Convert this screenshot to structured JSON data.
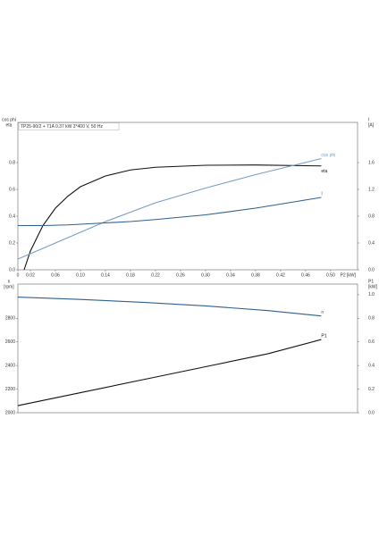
{
  "chart_data": [
    {
      "type": "line",
      "title": "TP25-90/2 + 71A   0.37 kW   3*400 V, 50 Hz",
      "y_label": [
        "cos phi",
        "eta"
      ],
      "y2_label": [
        "I",
        "[A]"
      ],
      "x_label": "P2 [kW]",
      "x": [
        0,
        0.01,
        0.02,
        0.04,
        0.06,
        0.08,
        0.1,
        0.14,
        0.18,
        0.22,
        0.3,
        0.38,
        0.485
      ],
      "xlim": [
        0,
        0.543
      ],
      "xticks": [
        {
          "value": 0,
          "label": "0"
        },
        0.02,
        0.06,
        {
          "value": 0.1,
          "label": "0.10"
        },
        0.14,
        0.18,
        0.22,
        0.26,
        {
          "value": 0.3,
          "label": "0.30"
        },
        0.34,
        0.38,
        0.42,
        0.46,
        {
          "value": 0.5,
          "label": "0.50"
        }
      ],
      "ylim": [
        0,
        1.1
      ],
      "yticks": [
        {
          "value": 0,
          "label": "0.0"
        },
        0.2,
        0.4,
        0.6,
        0.8
      ],
      "y2lim": [
        0,
        2.2
      ],
      "y2ticks": [
        {
          "value": 0,
          "label": "0.0"
        },
        0.4,
        0.8,
        1.2,
        1.6
      ],
      "series": [
        {
          "name": "eta",
          "color": "#111111",
          "values": [
            null,
            0,
            0.14,
            0.33,
            0.46,
            0.55,
            0.62,
            0.7,
            0.745,
            0.765,
            0.78,
            0.782,
            0.775
          ]
        },
        {
          "name": "cos phi",
          "color": "#7a9cc6",
          "values": [
            0.08,
            0.1,
            0.12,
            0.16,
            0.2,
            0.24,
            0.28,
            0.36,
            0.43,
            0.5,
            0.61,
            0.71,
            0.83
          ]
        },
        {
          "name": "I",
          "color": "#2f5f8f",
          "axis": "y2",
          "values": [
            0.66,
            0.66,
            0.66,
            0.66,
            0.665,
            0.67,
            0.68,
            0.7,
            0.72,
            0.75,
            0.82,
            0.92,
            1.08
          ]
        }
      ]
    },
    {
      "type": "line",
      "y_label": [
        "n",
        "[rpm]"
      ],
      "y2_label": [
        "P1",
        "[kW]"
      ],
      "x": [
        0,
        0.1,
        0.2,
        0.3,
        0.4,
        0.485
      ],
      "xlim": [
        0,
        0.543
      ],
      "ylim": [
        2000,
        3090
      ],
      "yticks": [
        2000,
        2200,
        2400,
        2600,
        2800
      ],
      "y2lim": [
        0,
        1.09
      ],
      "y2ticks": [
        {
          "value": 0,
          "label": "0.0"
        },
        0.2,
        0.4,
        0.6,
        0.8,
        {
          "value": 1,
          "label": "1.0"
        }
      ],
      "series": [
        {
          "name": "n",
          "color": "#2f5f8f",
          "values": [
            2980,
            2960,
            2935,
            2905,
            2865,
            2820
          ]
        },
        {
          "name": "P1",
          "color": "#111111",
          "axis": "y2",
          "values": [
            0.06,
            0.17,
            0.28,
            0.39,
            0.5,
            0.62
          ]
        }
      ]
    }
  ]
}
